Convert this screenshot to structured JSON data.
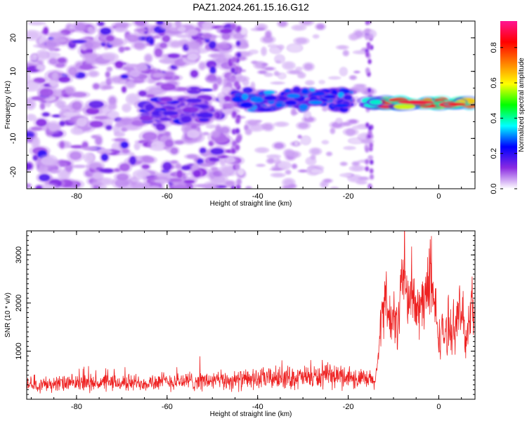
{
  "title": "PAZ1.2024.261.15.16.G12",
  "chart_data": [
    {
      "type": "heatmap",
      "title": "PAZ1.2024.261.15.16.G12",
      "xlabel": "Height of straight line (km)",
      "ylabel": "Frequency (Hz)",
      "xlim": [
        -91,
        8
      ],
      "ylim": [
        -25,
        25
      ],
      "xticks": [
        -80,
        -60,
        -40,
        -20,
        0
      ],
      "xtick_labels": [
        "-80",
        "-60",
        "-40",
        "-20",
        "0"
      ],
      "yticks": [
        -20,
        -10,
        0,
        10,
        20
      ],
      "ytick_labels": [
        "-20",
        "-10",
        "0",
        "10",
        "20"
      ],
      "grid": false,
      "colorbar": {
        "label": "Normalized spectral amplitude",
        "range": [
          0,
          0.95
        ],
        "ticks": [
          0.0,
          0.2,
          0.4,
          0.6,
          0.8
        ],
        "tick_labels": [
          "0.0",
          "0.2",
          "0.4",
          "0.6",
          "0.8"
        ],
        "colormap": [
          "#ffffff",
          "#8a2be2",
          "#0000ff",
          "#00ffff",
          "#00ff00",
          "#ffff00",
          "#ff8000",
          "#ff0000",
          "#ff1493"
        ]
      },
      "features": [
        {
          "x_range": [
            -91,
            -45
          ],
          "y_range": [
            -25,
            25
          ],
          "amplitude": 0.08,
          "description_level": "noise"
        },
        {
          "x_range": [
            -65,
            -50
          ],
          "y_range": [
            -5,
            2
          ],
          "amplitude": 0.15
        },
        {
          "x_range": [
            -45,
            -20
          ],
          "y_range": [
            -2,
            5
          ],
          "amplitude": 0.25
        },
        {
          "x_range": [
            -15,
            8
          ],
          "y_range": [
            -1,
            2
          ],
          "amplitude": 0.9
        }
      ]
    },
    {
      "type": "line",
      "title": "",
      "xlabel": "Height of straight line (km)",
      "ylabel": "SNR (10 * v/v)",
      "xlim": [
        -91,
        8
      ],
      "ylim": [
        0,
        3500
      ],
      "xticks": [
        -80,
        -60,
        -40,
        -20,
        0
      ],
      "xtick_labels": [
        "-80",
        "-60",
        "-40",
        "-20",
        "0"
      ],
      "yticks": [
        1000,
        2000,
        3000
      ],
      "ytick_labels": [
        "1000",
        "2000",
        "3000"
      ],
      "grid": false,
      "series": [
        {
          "color": "#ee2222",
          "x": [
            -91,
            -85,
            -80,
            -75,
            -70,
            -65,
            -60,
            -55,
            -50,
            -45,
            -40,
            -35,
            -30,
            -25,
            -20,
            -18,
            -16,
            -14,
            -13,
            -12,
            -11,
            -10,
            -9,
            -8,
            -7,
            -6,
            -5,
            -4,
            -3,
            -2,
            -1,
            0,
            1,
            2,
            3,
            4,
            5,
            6,
            7,
            8
          ],
          "y": [
            300,
            320,
            330,
            340,
            340,
            350,
            370,
            380,
            380,
            390,
            420,
            450,
            450,
            470,
            480,
            420,
            400,
            380,
            1200,
            2300,
            1600,
            1700,
            1500,
            2800,
            2000,
            2200,
            1800,
            1900,
            2200,
            2300,
            2000,
            1300,
            1400,
            1300,
            1500,
            1600,
            1900,
            1200,
            2000,
            1700
          ]
        }
      ]
    }
  ]
}
